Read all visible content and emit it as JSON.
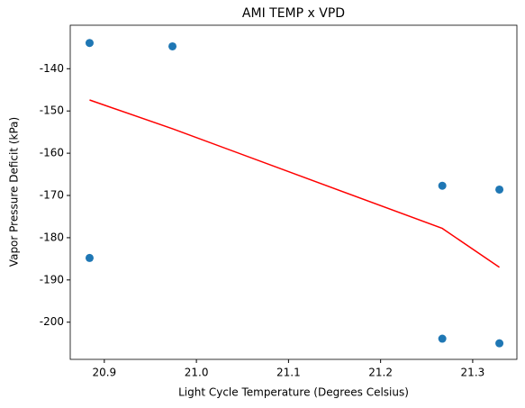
{
  "chart_data": {
    "type": "scatter",
    "title": "AMI TEMP x VPD",
    "x_label": "Light Cycle Temperature (Degrees Celsius)",
    "y_label": "Vapor Pressure Deficit (kPa)",
    "points": {
      "color": "#1f77b4",
      "x": [
        20.884,
        20.974,
        20.884,
        21.267,
        21.329,
        21.267,
        21.329
      ],
      "y": [
        -133.9,
        -134.7,
        -184.8,
        -167.7,
        -168.6,
        -203.9,
        -205.0
      ]
    },
    "line": {
      "color": "#ff0000",
      "x": [
        20.884,
        20.974,
        21.267,
        21.329
      ],
      "y": [
        -147.4,
        -154.2,
        -177.8,
        -187.0
      ]
    },
    "xlim": [
      20.863,
      21.348
    ],
    "ylim": [
      -208.8,
      -129.7
    ],
    "xticks": [
      20.9,
      {
        "value": 21,
        "label": "21.0"
      },
      21.1,
      21.2,
      21.3
    ],
    "yticks": [
      -140,
      -150,
      -160,
      -170,
      -180,
      -190,
      -200
    ]
  }
}
